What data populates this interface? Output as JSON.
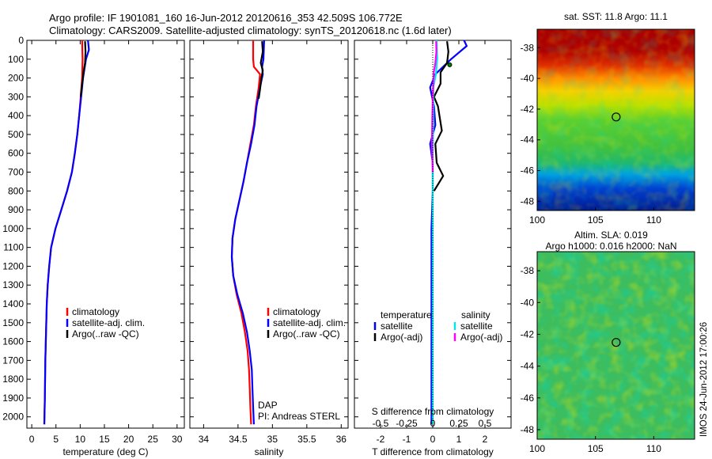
{
  "header": {
    "line1": "Argo profile: IF 1901081_160 16-Jun-2012 20120616_353 42.509S 106.772E",
    "line2": "Climatology: CARS2009. Satellite-adjusted climatology: synTS_20120618.nc (1.6d later)"
  },
  "colors": {
    "red": "#ff0000",
    "blue": "#0000ff",
    "black": "#000000",
    "cyan": "#00e5ee",
    "magenta": "#ff00ff"
  },
  "chart_data": [
    {
      "type": "line",
      "name": "temperature-profile",
      "xlabel": "temperature (deg C)",
      "xticks": [
        0,
        5,
        10,
        15,
        20,
        25,
        30
      ],
      "xlim": [
        -1,
        31.5
      ],
      "ylim": [
        0,
        2060
      ],
      "yticks": [
        0,
        100,
        200,
        300,
        400,
        500,
        600,
        700,
        800,
        900,
        1000,
        1100,
        1200,
        1300,
        1400,
        1500,
        1600,
        1700,
        1800,
        1900,
        2000
      ],
      "legend": [
        "climatology",
        "satellite-adj. clim.",
        "Argo(..raw -QC)"
      ],
      "series": [
        {
          "name": "climatology",
          "color": "#ff0000",
          "points": [
            [
              10.4,
              0
            ],
            [
              10.5,
              100
            ],
            [
              10.4,
              200
            ],
            [
              10.1,
              300
            ],
            [
              9.8,
              400
            ],
            [
              9.4,
              500
            ],
            [
              8.9,
              600
            ],
            [
              8.3,
              700
            ],
            [
              7.3,
              800
            ],
            [
              6.1,
              900
            ],
            [
              4.9,
              1000
            ],
            [
              4.0,
              1100
            ],
            [
              3.6,
              1200
            ],
            [
              3.3,
              1300
            ],
            [
              3.1,
              1400
            ],
            [
              3.0,
              1500
            ],
            [
              2.9,
              1600
            ],
            [
              2.8,
              1700
            ],
            [
              2.75,
              1800
            ],
            [
              2.7,
              1900
            ],
            [
              2.6,
              2040
            ]
          ]
        },
        {
          "name": "satellite-adj. clim.",
          "color": "#0000ff",
          "points": [
            [
              11.6,
              0
            ],
            [
              11.8,
              50
            ],
            [
              11.2,
              100
            ],
            [
              10.6,
              200
            ],
            [
              10.2,
              300
            ],
            [
              9.8,
              400
            ],
            [
              9.4,
              500
            ],
            [
              8.9,
              600
            ],
            [
              8.3,
              700
            ],
            [
              7.3,
              800
            ],
            [
              6.1,
              900
            ],
            [
              4.9,
              1000
            ],
            [
              4.0,
              1100
            ],
            [
              3.6,
              1200
            ],
            [
              3.3,
              1300
            ],
            [
              3.1,
              1400
            ],
            [
              3.0,
              1500
            ],
            [
              2.9,
              1600
            ],
            [
              2.8,
              1700
            ],
            [
              2.75,
              1800
            ],
            [
              2.7,
              1900
            ],
            [
              2.6,
              2040
            ]
          ]
        },
        {
          "name": "Argo(..raw -QC)",
          "color": "#000000",
          "points": [
            [
              11.0,
              5
            ],
            [
              11.1,
              60
            ],
            [
              11.0,
              120
            ],
            [
              10.7,
              170
            ],
            [
              10.4,
              230
            ],
            [
              10.1,
              300
            ]
          ]
        }
      ]
    },
    {
      "type": "line",
      "name": "salinity-profile",
      "xlabel": "salinity",
      "xticks": [
        34,
        34.5,
        35,
        35.5,
        36
      ],
      "xtick_labels": [
        "34",
        "34.5",
        "35",
        "35.5",
        "36"
      ],
      "xlim": [
        33.8,
        36.1
      ],
      "ylim": [
        0,
        2060
      ],
      "legend": [
        "climatology",
        "satellite-adj. clim.",
        "Argo(..raw -QC)"
      ],
      "annotation": [
        "DAP",
        "PI: Andreas STERL"
      ],
      "series": [
        {
          "name": "climatology",
          "color": "#ff0000",
          "points": [
            [
              34.72,
              0
            ],
            [
              34.72,
              100
            ],
            [
              34.73,
              140
            ],
            [
              34.82,
              180
            ],
            [
              34.8,
              250
            ],
            [
              34.76,
              350
            ],
            [
              34.73,
              450
            ],
            [
              34.68,
              550
            ],
            [
              34.63,
              650
            ],
            [
              34.58,
              750
            ],
            [
              34.52,
              850
            ],
            [
              34.46,
              950
            ],
            [
              34.42,
              1050
            ],
            [
              34.41,
              1150
            ],
            [
              34.43,
              1250
            ],
            [
              34.48,
              1350
            ],
            [
              34.55,
              1450
            ],
            [
              34.6,
              1550
            ],
            [
              34.64,
              1650
            ],
            [
              34.66,
              1750
            ],
            [
              34.67,
              1850
            ],
            [
              34.68,
              1950
            ],
            [
              34.69,
              2040
            ]
          ]
        },
        {
          "name": "satellite-adj. clim.",
          "color": "#0000ff",
          "points": [
            [
              34.88,
              0
            ],
            [
              34.87,
              100
            ],
            [
              34.85,
              140
            ],
            [
              34.86,
              180
            ],
            [
              34.82,
              250
            ],
            [
              34.77,
              350
            ],
            [
              34.74,
              450
            ],
            [
              34.69,
              550
            ],
            [
              34.63,
              650
            ],
            [
              34.58,
              750
            ],
            [
              34.52,
              850
            ],
            [
              34.46,
              950
            ],
            [
              34.42,
              1050
            ],
            [
              34.41,
              1150
            ],
            [
              34.43,
              1250
            ],
            [
              34.49,
              1350
            ],
            [
              34.57,
              1450
            ],
            [
              34.63,
              1550
            ],
            [
              34.67,
              1650
            ],
            [
              34.7,
              1750
            ],
            [
              34.71,
              1850
            ],
            [
              34.72,
              1950
            ],
            [
              34.73,
              2040
            ]
          ]
        },
        {
          "name": "Argo(..raw -QC)",
          "color": "#000000",
          "points": [
            [
              34.85,
              5
            ],
            [
              34.86,
              60
            ],
            [
              34.83,
              120
            ],
            [
              34.86,
              160
            ],
            [
              34.84,
              200
            ],
            [
              34.82,
              260
            ],
            [
              34.8,
              310
            ]
          ]
        }
      ]
    },
    {
      "type": "line",
      "name": "difference-profile",
      "xlabel": "T difference from climatology",
      "xlabel_top": "S difference from climatology",
      "xticks": [
        -2,
        -1,
        0,
        1,
        2
      ],
      "xtick_labels": [
        "-2",
        "-1",
        "0",
        "1",
        "2"
      ],
      "xlim": [
        -3,
        3
      ],
      "s_ticks": [
        -0.5,
        -0.25,
        0,
        0.25,
        0.5
      ],
      "s_tick_labels": [
        "-0.5",
        "-0.25",
        "0",
        "0.25",
        "0.5"
      ],
      "ylim": [
        0,
        2060
      ],
      "legend_temperature": {
        "title": "temperature",
        "items": [
          "satellite",
          "Argo(-adj)"
        ]
      },
      "legend_salinity": {
        "title": "salinity",
        "items": [
          "satellite",
          "Argo(-adj)"
        ]
      },
      "series": [
        {
          "name": "temperature satellite",
          "color": "#0000ff",
          "points": [
            [
              1.2,
              0
            ],
            [
              1.3,
              30
            ],
            [
              0.7,
              100
            ],
            [
              0.1,
              180
            ],
            [
              -0.1,
              250
            ],
            [
              0.05,
              350
            ],
            [
              0.1,
              450
            ],
            [
              -0.1,
              550
            ],
            [
              0.0,
              650
            ],
            [
              0.0,
              800
            ],
            [
              -0.05,
              1000
            ],
            [
              -0.05,
              1200
            ],
            [
              -0.05,
              1500
            ],
            [
              -0.05,
              2040
            ]
          ]
        },
        {
          "name": "temperature Argo(-adj)",
          "color": "#000000",
          "points": [
            [
              0.55,
              5
            ],
            [
              0.6,
              60
            ],
            [
              0.55,
              120
            ],
            [
              0.3,
              170
            ],
            [
              0.3,
              230
            ],
            [
              0.05,
              300
            ],
            [
              0.2,
              350
            ],
            [
              0.35,
              480
            ],
            [
              0.1,
              550
            ],
            [
              0.15,
              650
            ],
            [
              0.4,
              720
            ],
            [
              0.05,
              800
            ]
          ]
        },
        {
          "name": "salinity satellite",
          "color": "#00e5ee",
          "points": [
            [
              0.15,
              0
            ],
            [
              0.17,
              100
            ],
            [
              0.12,
              180
            ],
            [
              0.02,
              250
            ],
            [
              0.02,
              400
            ],
            [
              0.0,
              600
            ],
            [
              0.0,
              800
            ],
            [
              0.0,
              1200
            ],
            [
              0.0,
              2040
            ]
          ]
        },
        {
          "name": "salinity Argo(-adj)",
          "color": "#ff00ff",
          "points": [
            [
              0.13,
              5
            ],
            [
              0.14,
              60
            ],
            [
              0.1,
              120
            ],
            [
              0.04,
              170
            ],
            [
              0.02,
              230
            ],
            [
              0.0,
              300
            ],
            [
              -0.02,
              450
            ],
            [
              -0.03,
              550
            ],
            [
              0.0,
              700
            ]
          ]
        }
      ]
    },
    {
      "type": "heatmap",
      "name": "sst-map",
      "title": "sat. SST: 11.8 Argo: 11.1",
      "xticks": [
        100,
        105,
        110
      ],
      "yticks": [
        -38,
        -40,
        -42,
        -44,
        -46,
        -48
      ],
      "ytick_labels": [
        "-38",
        "-40",
        "-42",
        "-44",
        "-46",
        "-48"
      ],
      "xlim": [
        100,
        113.5
      ],
      "ylim": [
        -48.6,
        -36.8
      ],
      "marker": {
        "lon": 106.772,
        "lat": -42.509
      }
    },
    {
      "type": "heatmap",
      "name": "sla-map",
      "title": "Altim. SLA: 0.019",
      "subtitle": "Argo h1000: 0.016 h2000: NaN",
      "xticks": [
        100,
        105,
        110
      ],
      "yticks": [
        -38,
        -40,
        -42,
        -44,
        -46,
        -48
      ],
      "ytick_labels": [
        "-38",
        "-40",
        "-42",
        "-44",
        "-46",
        "-48"
      ],
      "xlim": [
        100,
        113.5
      ],
      "ylim": [
        -48.6,
        -36.8
      ],
      "marker": {
        "lon": 106.772,
        "lat": -42.509
      }
    }
  ],
  "footer": {
    "stamp": "IMOS 24-Jun-2012 17:00:26"
  }
}
